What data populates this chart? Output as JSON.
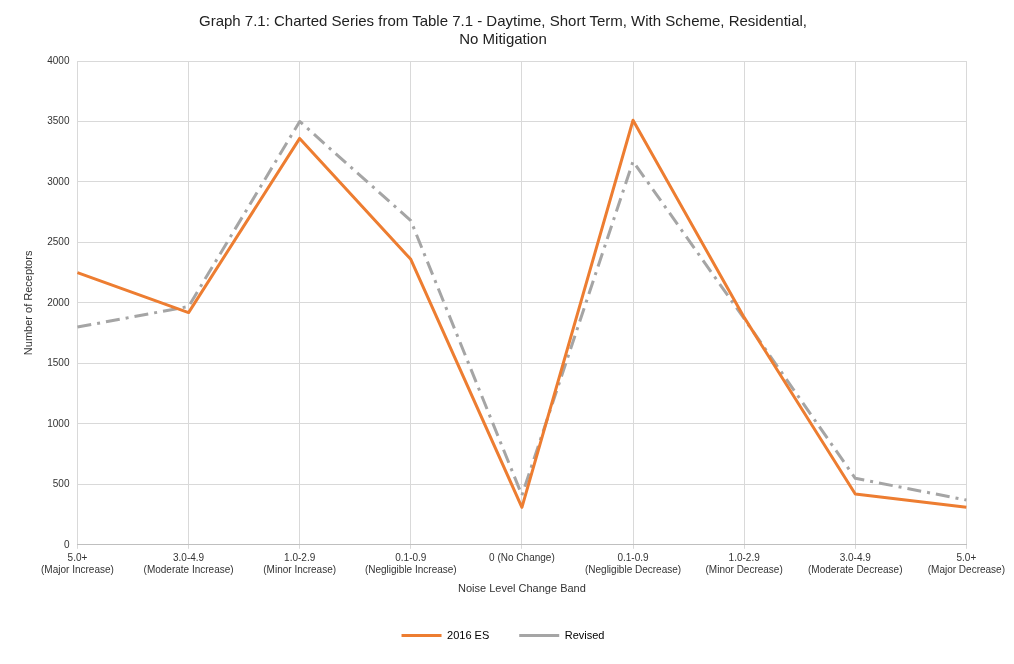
{
  "chart_data": {
    "type": "line",
    "title": "Graph 7.1: Charted Series from Table 7.1 - Daytime, Short Term, With Scheme, Residential, No Mitigation",
    "xlabel": "Noise Level Change Band",
    "ylabel": "Number of Receptors",
    "categories": [
      "5.0+ (Major Increase)",
      "3.0-4.9 (Moderate Increase)",
      "1.0-2.9 (Minor Increase)",
      "0.1-0.9 (Negligible Increase)",
      "0 (No Change)",
      "0.1-0.9 (Negligible Decrease)",
      "1.0-2.9 (Minor Decrease)",
      "3.0-4.9 (Moderate Decrease)",
      "5.0+ (Major Decrease)"
    ],
    "series": [
      {
        "name": "2016 ES",
        "color": "#ed7d31",
        "line_style": "solid",
        "values": [
          2250,
          1920,
          3360,
          2360,
          310,
          3510,
          1880,
          420,
          310
        ]
      },
      {
        "name": "Revised",
        "color": "#a5a5a5",
        "line_style": "dashed",
        "values": [
          1800,
          1970,
          3500,
          2680,
          410,
          3170,
          1870,
          550,
          370
        ]
      }
    ],
    "ylim": [
      0,
      4000
    ],
    "yticks": [
      0,
      500,
      1000,
      1500,
      2000,
      2500,
      3000,
      3500,
      4000
    ],
    "grid": true,
    "legend": "bottom",
    "marker": "none"
  }
}
